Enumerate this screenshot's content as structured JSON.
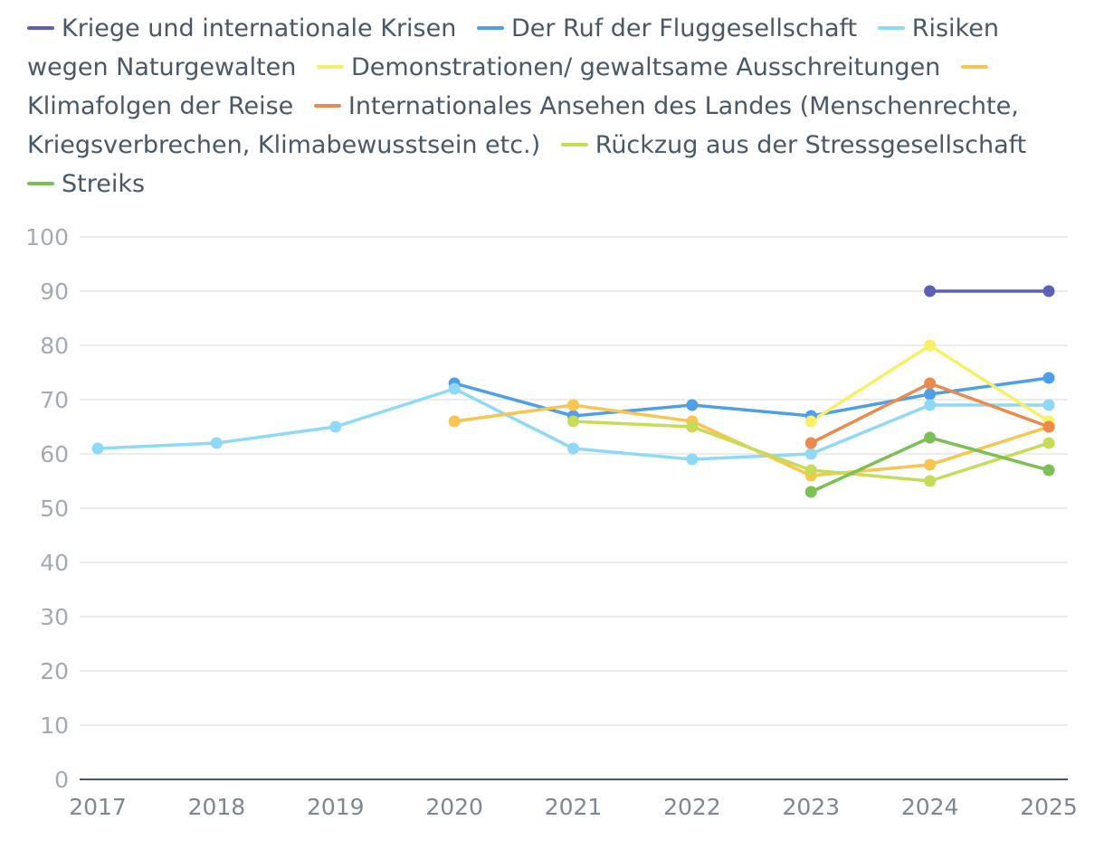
{
  "chart_data": {
    "type": "line",
    "title": "",
    "xlabel": "",
    "ylabel": "",
    "ylim": [
      0,
      100
    ],
    "y_ticks": [
      0,
      10,
      20,
      30,
      40,
      50,
      60,
      70,
      80,
      90,
      100
    ],
    "categories": [
      "2017",
      "2018",
      "2019",
      "2020",
      "2021",
      "2022",
      "2023",
      "2024",
      "2025"
    ],
    "legend_position": "top",
    "grid": true,
    "series": [
      {
        "name": "Kriege und internationale Krisen",
        "color": "#5b5fb5",
        "values": [
          null,
          null,
          null,
          null,
          null,
          null,
          null,
          90,
          90
        ]
      },
      {
        "name": "Der Ruf der Fluggesellschaft",
        "color": "#4f9ee8",
        "values": [
          null,
          null,
          null,
          73,
          67,
          69,
          67,
          71,
          74
        ]
      },
      {
        "name": "Risiken wegen Naturgewalten",
        "color": "#8fd9f7",
        "values": [
          61,
          62,
          65,
          72,
          61,
          59,
          60,
          69,
          69
        ]
      },
      {
        "name": "Demonstrationen/ gewaltsame Ausschreitungen",
        "color": "#f9ef66",
        "values": [
          null,
          null,
          null,
          null,
          null,
          null,
          66,
          80,
          66
        ]
      },
      {
        "name": "Klimafolgen der Reise",
        "color": "#f8c550",
        "values": [
          null,
          null,
          null,
          66,
          69,
          66,
          56,
          58,
          65
        ]
      },
      {
        "name": "Internationales Ansehen des Landes (Menschenrechte, Kriegsverbrechen, Klimabewusstsein etc.)",
        "color": "#ea8a4e",
        "values": [
          null,
          null,
          null,
          null,
          null,
          null,
          62,
          73,
          65
        ]
      },
      {
        "name": "Rückzug aus der Stressgesellschaft",
        "color": "#c7db56",
        "values": [
          null,
          null,
          null,
          null,
          66,
          65,
          57,
          55,
          62
        ]
      },
      {
        "name": "Streiks",
        "color": "#7cbf55",
        "values": [
          null,
          null,
          null,
          null,
          null,
          null,
          53,
          63,
          57
        ]
      }
    ]
  }
}
